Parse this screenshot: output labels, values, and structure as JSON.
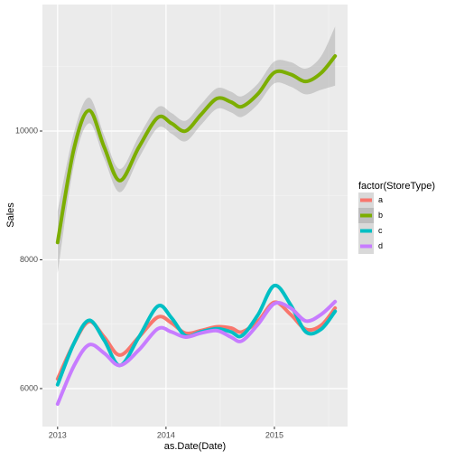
{
  "chart_data": {
    "type": "line",
    "x_label": "as.Date(Date)",
    "y_label": "Sales",
    "legend_title": "factor(StoreType)",
    "legend_position": "right",
    "grid": true,
    "xlim": [
      2012.86,
      2015.675
    ],
    "ylim": [
      5410,
      11965
    ],
    "xticks": [
      2013,
      2014,
      2015
    ],
    "yticks": [
      6000,
      8000,
      10000
    ],
    "x_minor_ticks": [
      2013.5,
      2014.5,
      2015.5
    ],
    "y_minor_ticks": [
      7000,
      9000,
      11000
    ],
    "x": [
      2013.0,
      2013.15,
      2013.29,
      2013.43,
      2013.575,
      2013.75,
      2013.925,
      2014.05,
      2014.18,
      2014.32,
      2014.47,
      2014.6,
      2014.7,
      2014.85,
      2015.0,
      2015.15,
      2015.29,
      2015.43,
      2015.56
    ],
    "series": [
      {
        "name": "a",
        "color": "#F8766D",
        "values": [
          6150,
          6700,
          7040,
          6800,
          6520,
          6800,
          7110,
          7020,
          6860,
          6900,
          6960,
          6940,
          6880,
          7050,
          7340,
          7150,
          6920,
          6980,
          7250
        ]
      },
      {
        "name": "b",
        "color": "#7CAE00",
        "values": [
          8270,
          9720,
          10320,
          9750,
          9230,
          9750,
          10210,
          10120,
          10000,
          10250,
          10505,
          10450,
          10380,
          10580,
          10910,
          10880,
          10770,
          10900,
          11165
        ],
        "band_lower": [
          7790,
          9470,
          10120,
          9570,
          9050,
          9580,
          10050,
          9960,
          9840,
          10090,
          10345,
          10290,
          10220,
          10420,
          10740,
          10690,
          10570,
          10640,
          10705
        ],
        "band_upper": [
          8750,
          9970,
          10520,
          9930,
          9410,
          9920,
          10370,
          10280,
          10160,
          10410,
          10665,
          10610,
          10540,
          10740,
          11080,
          11070,
          10970,
          11160,
          11625
        ]
      },
      {
        "name": "c",
        "color": "#00BFC4",
        "values": [
          6060,
          6700,
          7060,
          6750,
          6360,
          6800,
          7280,
          7100,
          6820,
          6880,
          6930,
          6880,
          6820,
          7150,
          7600,
          7300,
          6880,
          6920,
          7200
        ]
      },
      {
        "name": "d",
        "color": "#C77CFF",
        "values": [
          5760,
          6350,
          6680,
          6550,
          6360,
          6600,
          6930,
          6880,
          6800,
          6860,
          6900,
          6800,
          6740,
          7000,
          7320,
          7250,
          7050,
          7150,
          7350
        ]
      }
    ]
  }
}
